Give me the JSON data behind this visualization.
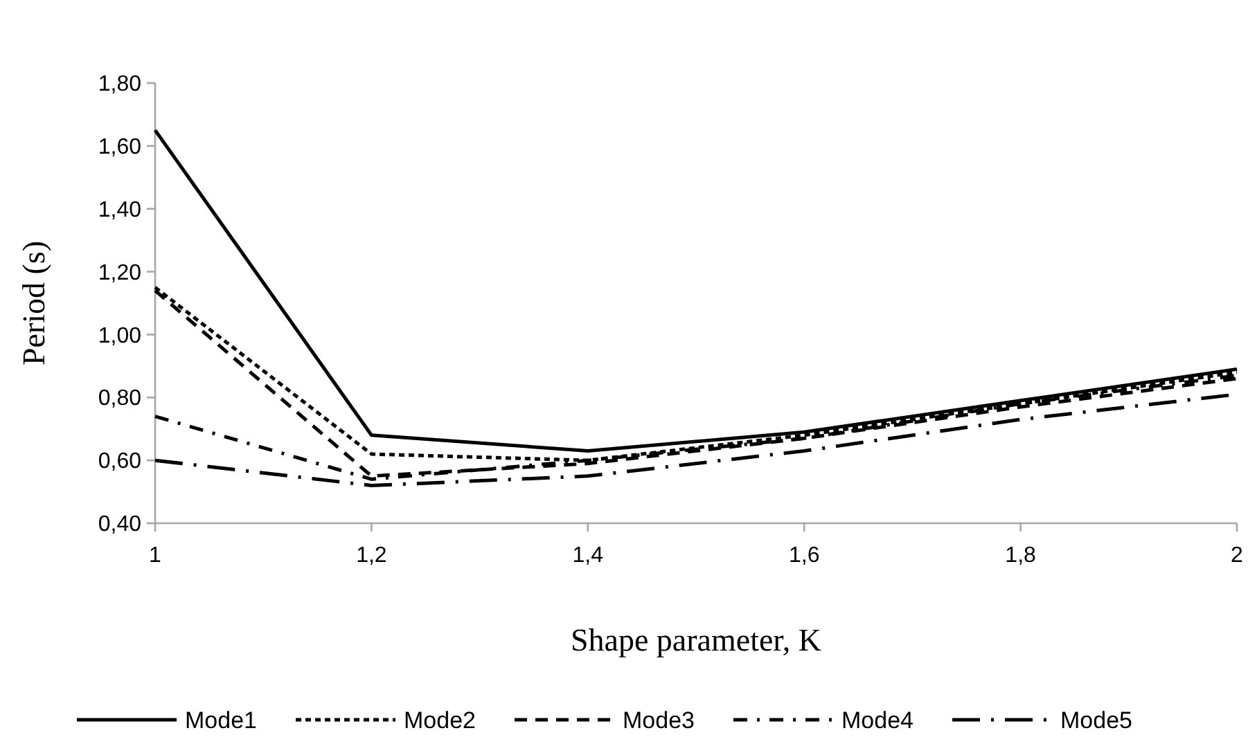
{
  "chart_data": {
    "type": "line",
    "xlabel": "Shape parameter, K",
    "ylabel": "Period (s)",
    "x": [
      1,
      1.2,
      1.4,
      1.6,
      1.8,
      2
    ],
    "xlim": [
      1,
      2
    ],
    "xticks": [
      1,
      {
        "value": 1.2,
        "label": "1,2"
      },
      {
        "value": 1.4,
        "label": "1,4"
      },
      {
        "value": 1.6,
        "label": "1,6"
      },
      {
        "value": 1.8,
        "label": "1,8"
      },
      2
    ],
    "ylim": [
      0.4,
      1.8
    ],
    "yticks": [
      {
        "value": 0.4,
        "label": "0,40"
      },
      {
        "value": 0.6,
        "label": "0,60"
      },
      {
        "value": 0.8,
        "label": "0,80"
      },
      {
        "value": 1.0,
        "label": "1,00"
      },
      {
        "value": 1.2,
        "label": "1,20"
      },
      {
        "value": 1.4,
        "label": "1,40"
      },
      {
        "value": 1.6,
        "label": "1,60"
      },
      {
        "value": 1.8,
        "label": "1,80"
      }
    ],
    "grid": false,
    "legend": "bottom",
    "marker": "none",
    "series": [
      {
        "name": "Mode1",
        "color": "#000000",
        "line_style": "solid",
        "values": [
          1.65,
          0.68,
          0.63,
          0.69,
          0.79,
          0.89
        ]
      },
      {
        "name": "Mode2",
        "color": "#000000",
        "line_style": "dotted",
        "values": [
          1.15,
          0.62,
          0.6,
          0.68,
          0.78,
          0.88
        ]
      },
      {
        "name": "Mode3",
        "color": "#000000",
        "line_style": "dashed",
        "values": [
          1.14,
          0.55,
          0.59,
          0.67,
          0.77,
          0.86
        ]
      },
      {
        "name": "Mode4",
        "color": "#000000",
        "line_style": "dashdot",
        "values": [
          0.74,
          0.54,
          0.6,
          0.67,
          0.78,
          0.87
        ]
      },
      {
        "name": "Mode5",
        "color": "#000000",
        "line_style": "longdashdot",
        "values": [
          0.6,
          0.52,
          0.55,
          0.63,
          0.73,
          0.81
        ]
      }
    ]
  }
}
